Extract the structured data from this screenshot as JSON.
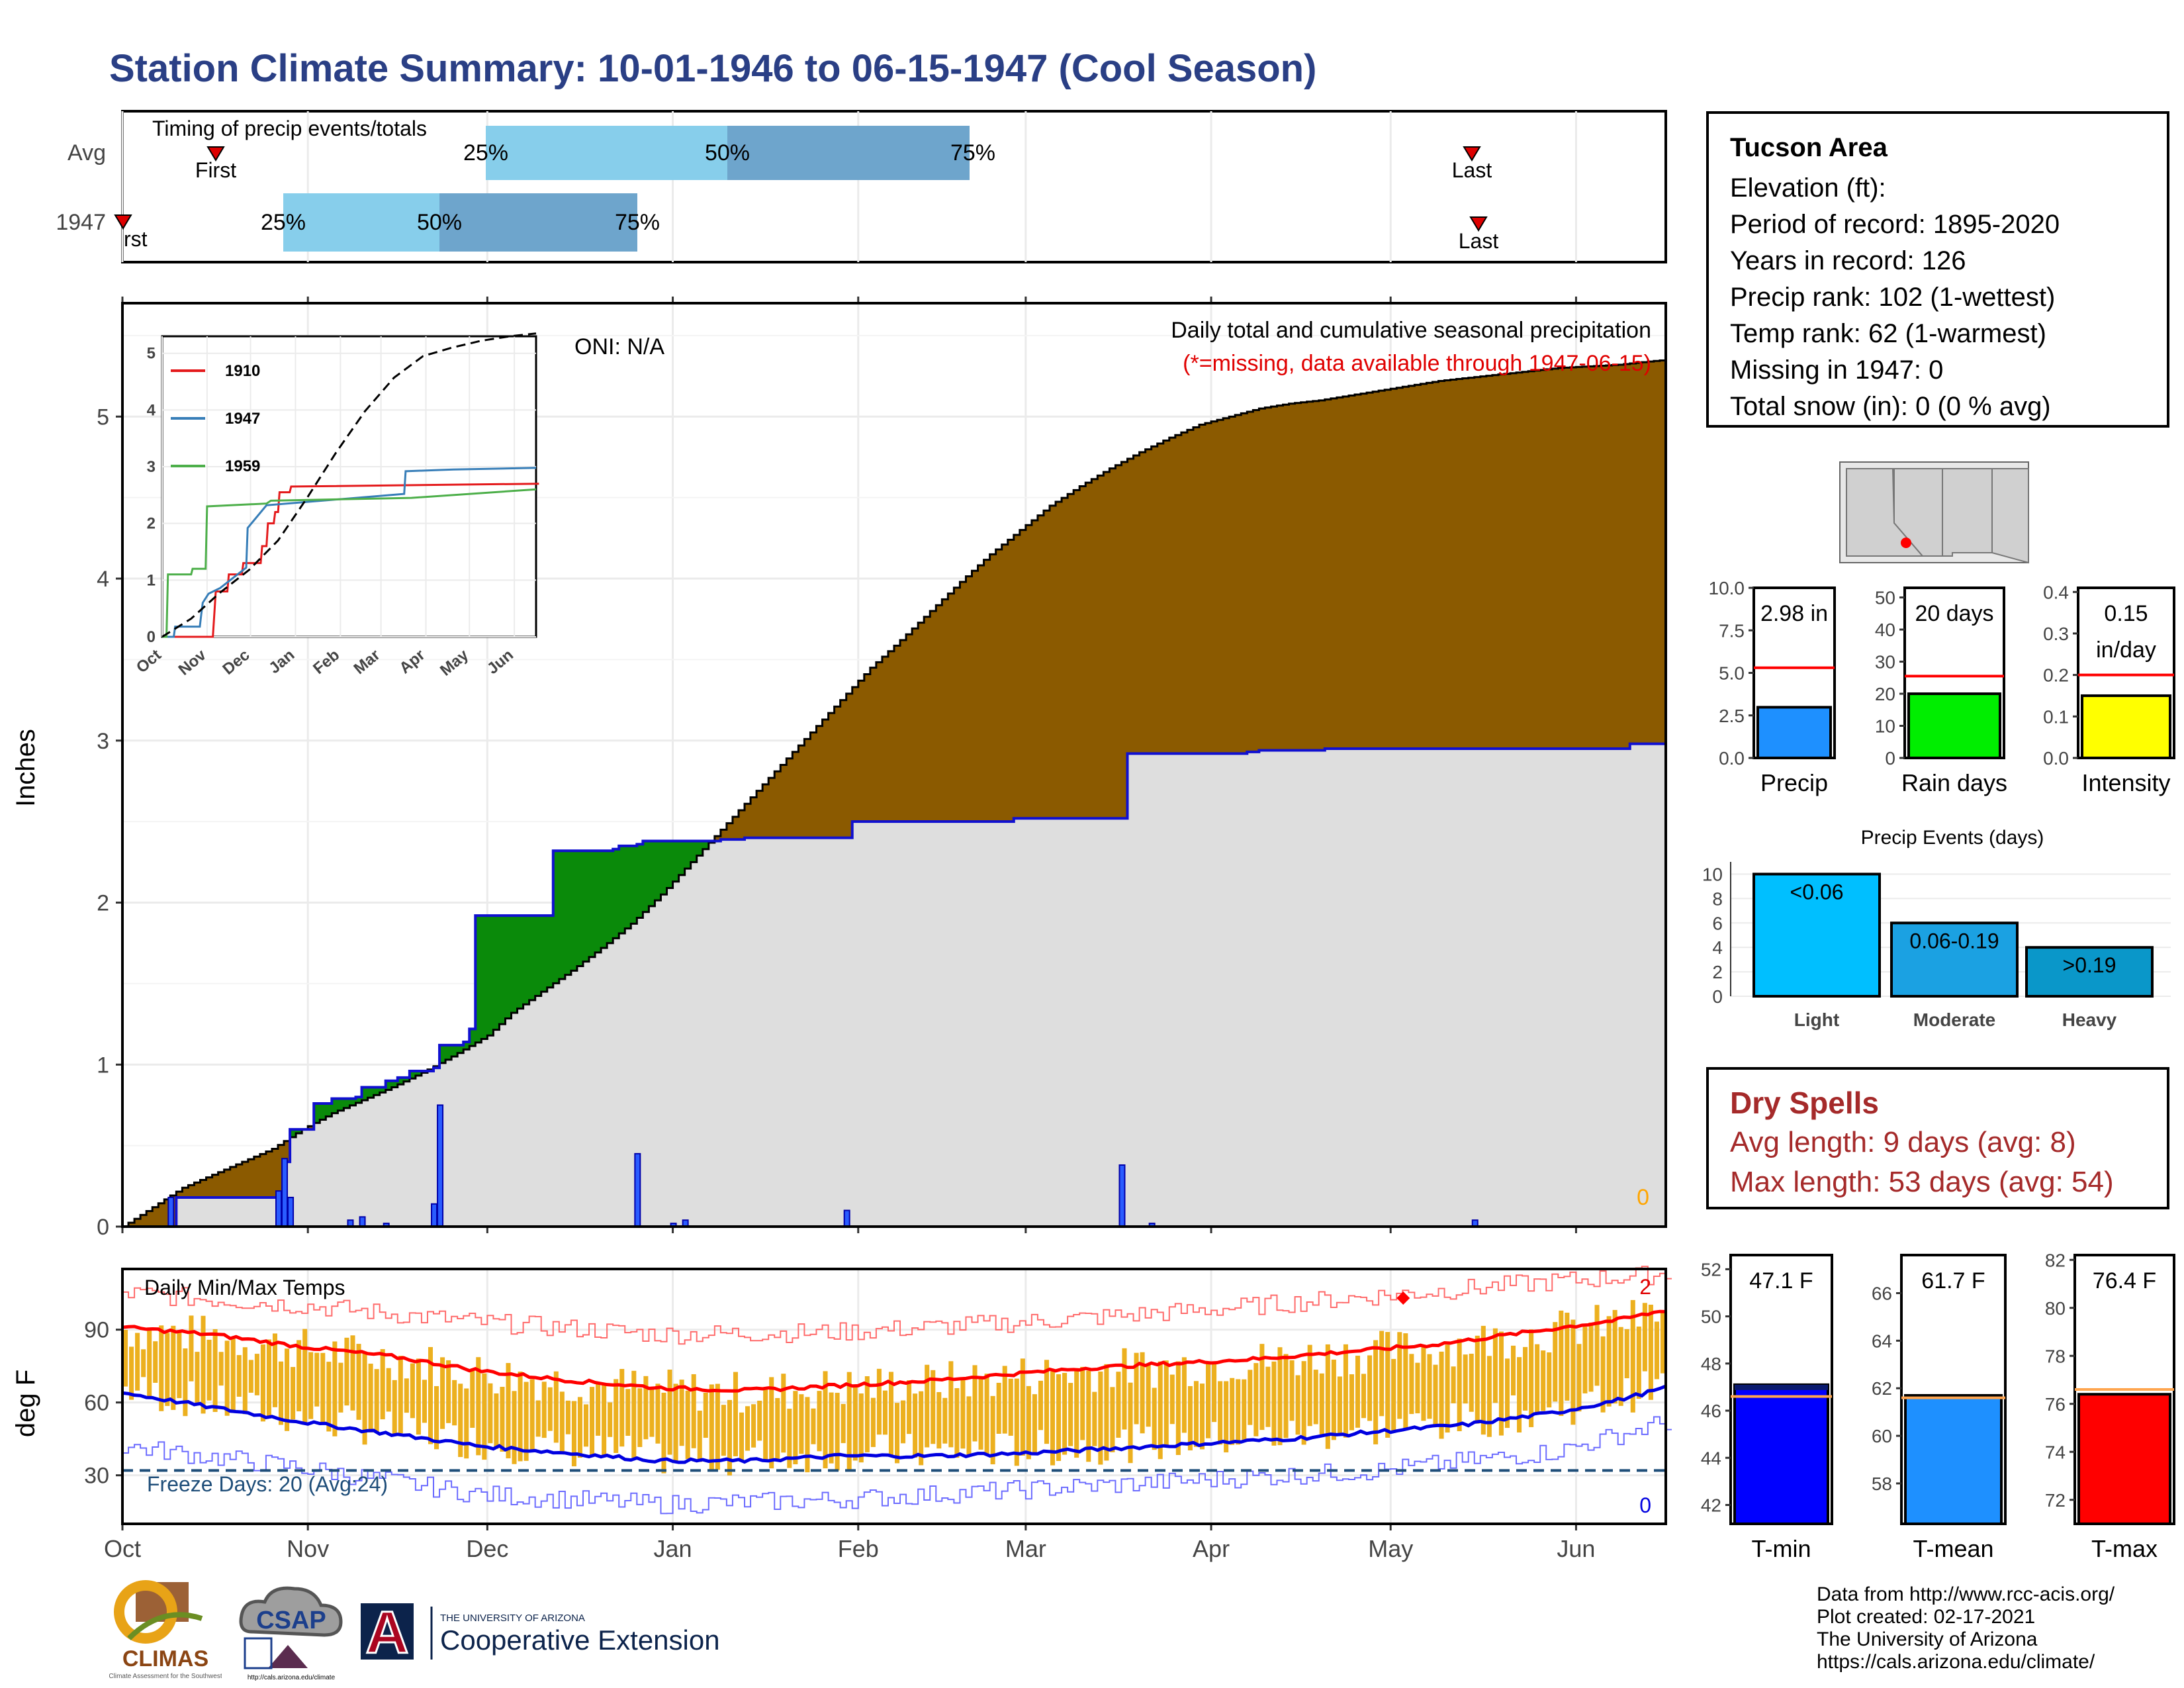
{
  "title": "Station Climate Summary: 10-01-1946 to 06-15-1947 (Cool Season)",
  "timing": {
    "label": "Timing of precip events/totals",
    "rows": [
      "Avg",
      "1947"
    ],
    "first_label": "First",
    "first_label_cut": "rst",
    "last_label": "Last",
    "pct_labels": [
      "25%",
      "50%",
      "75%"
    ]
  },
  "station": {
    "name": "Tucson Area",
    "lines": [
      "Elevation (ft):",
      "Period of record: 1895-2020",
      "Years in record: 126",
      "Precip rank: 102 (1-wettest)",
      "Temp rank: 62 (1-warmest)",
      "Missing in 1947: 0",
      "Total snow (in): 0 (0 % avg)"
    ]
  },
  "main": {
    "ylabel": "Inches",
    "oni": "ONI: N/A",
    "caption": "Daily total and cumulative seasonal precipitation",
    "missing_note": "(*=missing, data available through 1947-06-15)",
    "zero_count": "0",
    "yticks": [
      "0",
      "1",
      "2",
      "3",
      "4",
      "5"
    ]
  },
  "temps": {
    "ylabel": "deg F",
    "label": "Daily Min/Max Temps",
    "freeze": "Freeze Days: 20 (Avg:24)",
    "hot_count": "2",
    "cold_count": "0",
    "yticks": [
      "30",
      "60",
      "90"
    ],
    "months": [
      "Oct",
      "Nov",
      "Dec",
      "Jan",
      "Feb",
      "Mar",
      "Apr",
      "May",
      "Jun"
    ]
  },
  "inset": {
    "years": [
      "1910",
      "1947",
      "1959"
    ],
    "colors": [
      "#e41a1c",
      "#377eb8",
      "#4daf4a"
    ],
    "months": [
      "Oct",
      "Nov",
      "Dec",
      "Jan",
      "Feb",
      "Mar",
      "Apr",
      "May",
      "Jun"
    ],
    "yticks": [
      "0",
      "1",
      "2",
      "3",
      "4",
      "5"
    ]
  },
  "mini_bars": {
    "precip": {
      "label": "Precip",
      "value_label": "2.98 in",
      "ticks": [
        "0.0",
        "2.5",
        "5.0",
        "7.5",
        "10.0"
      ]
    },
    "rain_days": {
      "label": "Rain days",
      "value_label": "20 days",
      "ticks": [
        "0",
        "10",
        "20",
        "30",
        "40",
        "50"
      ]
    },
    "intensity": {
      "label": "Intensity",
      "value_label_1": "0.15",
      "value_label_2": "in/day",
      "ticks": [
        "0.0",
        "0.1",
        "0.2",
        "0.3",
        "0.4"
      ]
    }
  },
  "events": {
    "title": "Precip Events (days)",
    "categories": [
      "Light",
      "Moderate",
      "Heavy"
    ],
    "labels": [
      "<0.06",
      "0.06-0.19",
      ">0.19"
    ],
    "ticks": [
      "0",
      "2",
      "4",
      "6",
      "8",
      "10"
    ]
  },
  "dry_spells": {
    "title": "Dry Spells",
    "avg": "Avg length: 9 days (avg: 8)",
    "max": "Max length: 53 days (avg: 54)"
  },
  "temp_bars": {
    "tmin": {
      "label": "T-min",
      "value_label": "47.1 F",
      "ticks": [
        "42",
        "44",
        "46",
        "48",
        "50",
        "52"
      ]
    },
    "tmean": {
      "label": "T-mean",
      "value_label": "61.7 F",
      "ticks": [
        "58",
        "60",
        "62",
        "64",
        "66"
      ]
    },
    "tmax": {
      "label": "T-max",
      "value_label": "76.4 F",
      "ticks": [
        "72",
        "74",
        "76",
        "78",
        "80",
        "82"
      ]
    }
  },
  "credits": [
    "Data from http://www.rcc-acis.org/",
    "Plot created: 02-17-2021",
    "The University of Arizona",
    "https://cals.arizona.edu/climate/"
  ],
  "logos": {
    "climas": "CLIMAS",
    "climas_sub": "Climate Assessment for the Southwest",
    "csap": "CSAP",
    "csap_url": "http://cals.arizona.edu/climate",
    "ua_small": "THE UNIVERSITY OF ARIZONA",
    "ua_big": "Cooperative Extension",
    "ua_letter": "A"
  },
  "chart_data": [
    {
      "type": "area",
      "title": "Daily total and cumulative seasonal precipitation",
      "ylabel": "Inches",
      "ylim": [
        0,
        5.7
      ],
      "x_unit": "days since 1946-10-01",
      "xlim": [
        0,
        258
      ],
      "series": [
        {
          "name": "Avg cumulative",
          "x": [
            0,
            5,
            10,
            15,
            20,
            25,
            30,
            35,
            40,
            45,
            50,
            55,
            61,
            65,
            70,
            75,
            80,
            85,
            90,
            95,
            100,
            105,
            110,
            115,
            120,
            125,
            130,
            135,
            140,
            145,
            150,
            155,
            160,
            165,
            170,
            175,
            180,
            185,
            190,
            195,
            200,
            205,
            210,
            215,
            220,
            225,
            230,
            235,
            240,
            245,
            250,
            255,
            258
          ],
          "y": [
            0,
            0.12,
            0.24,
            0.32,
            0.4,
            0.48,
            0.6,
            0.7,
            0.78,
            0.86,
            0.95,
            1.05,
            1.18,
            1.32,
            1.45,
            1.58,
            1.72,
            1.87,
            2.05,
            2.25,
            2.45,
            2.65,
            2.85,
            3.05,
            3.25,
            3.45,
            3.62,
            3.8,
            3.98,
            4.15,
            4.3,
            4.45,
            4.57,
            4.68,
            4.78,
            4.87,
            4.95,
            5.0,
            5.05,
            5.08,
            5.1,
            5.13,
            5.16,
            5.19,
            5.22,
            5.24,
            5.26,
            5.28,
            5.3,
            5.31,
            5.32,
            5.34,
            5.35
          ]
        },
        {
          "name": "1947 cumulative",
          "x": [
            0,
            8,
            9,
            26,
            27,
            28,
            32,
            35,
            39,
            40,
            44,
            46,
            48,
            52,
            53,
            57,
            58,
            59,
            71,
            72,
            82,
            83,
            86,
            87,
            99,
            100,
            103,
            104,
            121,
            122,
            132,
            133,
            149,
            150,
            167,
            168,
            188,
            190,
            201,
            252,
            258
          ],
          "y": [
            0,
            0,
            0.18,
            0.18,
            0.4,
            0.6,
            0.76,
            0.79,
            0.8,
            0.86,
            0.9,
            0.92,
            0.96,
            0.98,
            1.12,
            1.14,
            1.22,
            1.92,
            1.92,
            2.32,
            2.33,
            2.35,
            2.36,
            2.38,
            2.38,
            2.39,
            2.39,
            2.4,
            2.4,
            2.5,
            2.5,
            2.5,
            2.52,
            2.52,
            2.52,
            2.92,
            2.93,
            2.94,
            2.95,
            2.98,
            2.98
          ]
        }
      ],
      "daily_bars": {
        "x": [
          8,
          26,
          27,
          28,
          38,
          40,
          44,
          52,
          53,
          86,
          92,
          94,
          121,
          167,
          172,
          226
        ],
        "y": [
          0.18,
          0.22,
          0.42,
          0.18,
          0.04,
          0.06,
          0.02,
          0.14,
          0.75,
          0.45,
          0.02,
          0.04,
          0.1,
          0.38,
          0.02,
          0.04
        ]
      }
    },
    {
      "type": "line",
      "title": "Daily Min/Max Temps",
      "ylabel": "deg F",
      "ylim": [
        10,
        115
      ],
      "x_unit": "days since 1946-10-01",
      "series": [
        {
          "name": "Avg max",
          "x": [
            0,
            15,
            30,
            45,
            60,
            75,
            90,
            105,
            120,
            135,
            150,
            160,
            175,
            190,
            205,
            220,
            235,
            250,
            258
          ],
          "y": [
            91,
            88,
            83,
            79,
            73,
            69,
            66,
            65,
            67,
            69,
            72,
            74,
            76,
            78,
            81,
            84,
            89,
            94,
            98
          ]
        },
        {
          "name": "Avg min",
          "x": [
            0,
            15,
            30,
            45,
            60,
            75,
            90,
            105,
            120,
            135,
            150,
            165,
            180,
            195,
            210,
            225,
            240,
            250,
            258
          ],
          "y": [
            64,
            58,
            52,
            47,
            42,
            39,
            36,
            36,
            38,
            38,
            39,
            41,
            43,
            45,
            48,
            51,
            56,
            61,
            66
          ]
        },
        {
          "name": "Record max",
          "x": [
            0,
            30,
            60,
            90,
            120,
            150,
            180,
            210,
            240,
            258
          ],
          "y": [
            105,
            100,
            93,
            88,
            89,
            93,
            98,
            104,
            110,
            113
          ]
        },
        {
          "name": "Record min",
          "x": [
            0,
            30,
            60,
            90,
            120,
            150,
            180,
            210,
            240,
            258
          ],
          "y": [
            42,
            33,
            22,
            18,
            20,
            24,
            28,
            32,
            40,
            52
          ]
        }
      ],
      "freeze_line": 32
    },
    {
      "type": "line",
      "title": "",
      "xlabel": "",
      "ylim": [
        0,
        5.3
      ],
      "x_unit": "days since 1946-10-01",
      "series": [
        {
          "name": "1910",
          "x": [
            0,
            35,
            37,
            45,
            46,
            55,
            56,
            68,
            69,
            72,
            73,
            77,
            78,
            80,
            81,
            88,
            89,
            260
          ],
          "y": [
            0,
            0,
            0.8,
            0.8,
            1.1,
            1.1,
            1.3,
            1.3,
            1.6,
            1.6,
            2.0,
            2.0,
            2.2,
            2.2,
            2.55,
            2.55,
            2.65,
            2.7
          ]
        },
        {
          "name": "1947",
          "x": [
            0,
            8,
            9,
            26,
            27,
            28,
            32,
            40,
            53,
            58,
            59,
            72,
            167,
            168,
            190,
            201,
            258
          ],
          "y": [
            0,
            0,
            0.18,
            0.18,
            0.4,
            0.6,
            0.76,
            0.86,
            1.12,
            1.22,
            1.92,
            2.32,
            2.52,
            2.92,
            2.94,
            2.95,
            2.98
          ]
        },
        {
          "name": "1959",
          "x": [
            0,
            3,
            4,
            20,
            21,
            30,
            31,
            72,
            75,
            172,
            258
          ],
          "y": [
            0,
            0,
            1.1,
            1.1,
            1.2,
            1.2,
            2.3,
            2.35,
            2.4,
            2.45,
            2.6
          ]
        },
        {
          "name": "Avg",
          "x": [
            0,
            20,
            40,
            60,
            80,
            100,
            120,
            140,
            160,
            180,
            200,
            220,
            240,
            258
          ],
          "y": [
            0,
            0.32,
            0.78,
            1.18,
            1.7,
            2.45,
            3.25,
            3.98,
            4.57,
            4.95,
            5.1,
            5.22,
            5.3,
            5.35
          ]
        }
      ]
    },
    {
      "type": "bar",
      "categories": [
        "Precip",
        "Rain days",
        "Intensity"
      ],
      "values": [
        2.98,
        20,
        0.15
      ],
      "avg_lines": [
        5.3,
        25.5,
        0.2
      ]
    },
    {
      "type": "bar",
      "title": "Precip Events (days)",
      "categories": [
        "Light",
        "Moderate",
        "Heavy"
      ],
      "values": [
        10,
        6,
        4
      ]
    },
    {
      "type": "bar",
      "categories": [
        "T-min",
        "T-mean",
        "T-max"
      ],
      "values": [
        47.1,
        61.7,
        76.4
      ],
      "avg_lines": [
        46.6,
        61.6,
        76.6
      ]
    }
  ]
}
